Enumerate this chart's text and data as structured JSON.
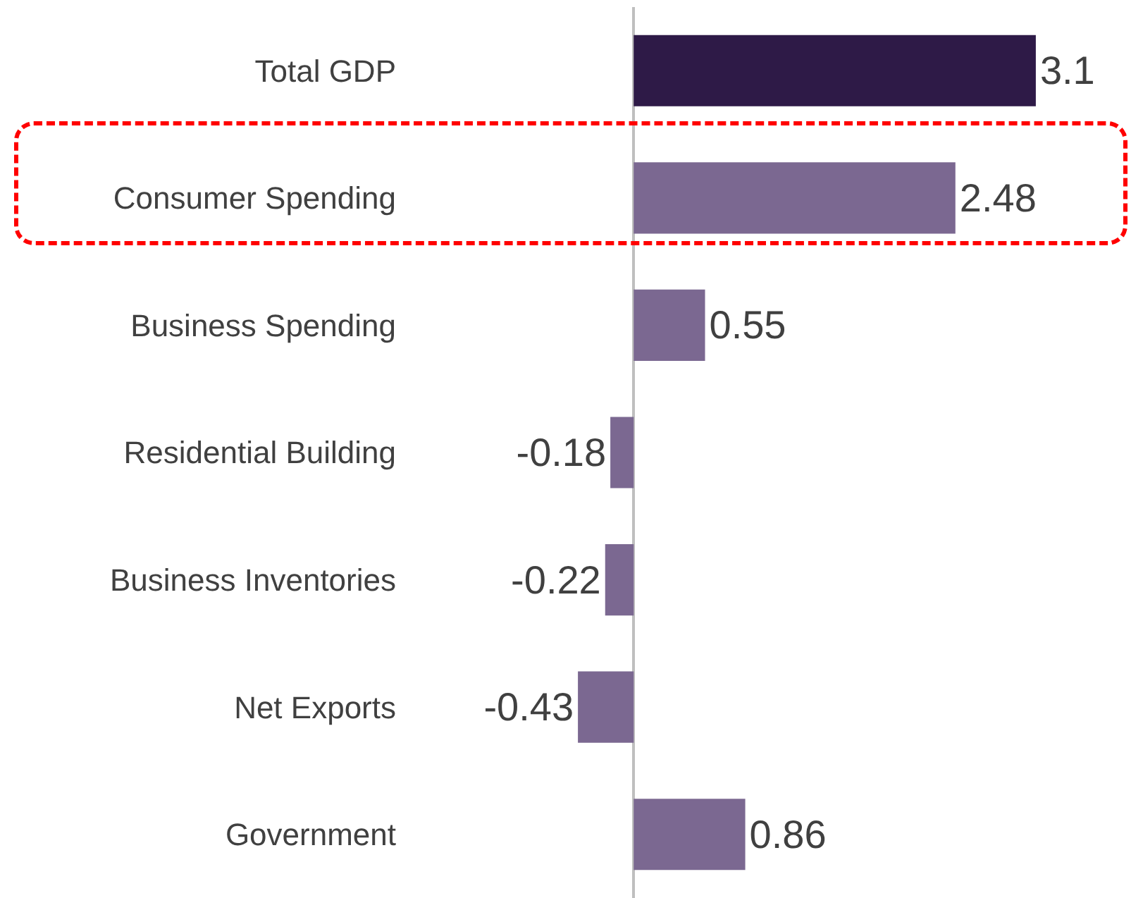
{
  "chart_data": {
    "type": "bar",
    "orientation": "horizontal",
    "categories": [
      "Total GDP",
      "Consumer Spending",
      "Business Spending",
      "Residential Building",
      "Business Inventories",
      "Net Exports",
      "Government"
    ],
    "values": [
      3.1,
      2.48,
      0.55,
      -0.18,
      -0.22,
      -0.43,
      0.86
    ],
    "colors": [
      "#2e1a47",
      "#7b6891",
      "#7b6891",
      "#7b6891",
      "#7b6891",
      "#7b6891",
      "#7b6891"
    ],
    "data_labels": true,
    "tick_labels": "y",
    "grid": false,
    "legend": false
  }
}
